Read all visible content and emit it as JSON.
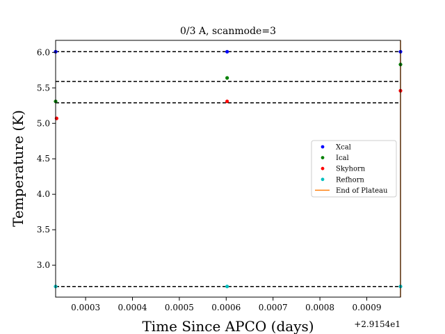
{
  "chart_data": {
    "type": "scatter",
    "title": "0/3 A, scanmode=3",
    "xlabel": "Time Since APCO (days)",
    "ylabel": "Temperature (K)",
    "x_offset_label": "+2.9154e1",
    "xlim": [
      0.000236,
      0.000972
    ],
    "ylim": [
      2.55,
      6.17
    ],
    "x_ticks": [
      {
        "value": 0.0003,
        "label": "0.0003"
      },
      {
        "value": 0.0004,
        "label": "0.0004"
      },
      {
        "value": 0.0005,
        "label": "0.0005"
      },
      {
        "value": 0.0006,
        "label": "0.0006"
      },
      {
        "value": 0.0007,
        "label": "0.0007"
      },
      {
        "value": 0.0008,
        "label": "0.0008"
      },
      {
        "value": 0.0009,
        "label": "0.0009"
      }
    ],
    "y_ticks": [
      {
        "value": 3.0,
        "label": "3.0"
      },
      {
        "value": 3.5,
        "label": "3.5"
      },
      {
        "value": 4.0,
        "label": "4.0"
      },
      {
        "value": 4.5,
        "label": "4.5"
      },
      {
        "value": 5.0,
        "label": "5.0"
      },
      {
        "value": 5.5,
        "label": "5.5"
      },
      {
        "value": 6.0,
        "label": "6.0"
      }
    ],
    "reference_lines": [
      6.01,
      5.59,
      5.29,
      2.7
    ],
    "series": [
      {
        "name": "Xcal",
        "color": "#0000ff",
        "points": [
          [
            0.000236,
            6.01
          ],
          [
            0.000602,
            6.01
          ],
          [
            0.000972,
            6.01
          ]
        ]
      },
      {
        "name": "Ical",
        "color": "#008000",
        "points": [
          [
            0.000236,
            5.31
          ],
          [
            0.000602,
            5.64
          ],
          [
            0.000972,
            5.83
          ]
        ]
      },
      {
        "name": "Skyhorn",
        "color": "#ff0000",
        "points": [
          [
            0.000238,
            5.07
          ],
          [
            0.000602,
            5.31
          ],
          [
            0.000972,
            5.46
          ]
        ]
      },
      {
        "name": "Refhorn",
        "color": "#00bfbf",
        "points": [
          [
            0.000236,
            2.7
          ],
          [
            0.000602,
            2.7
          ],
          [
            0.000972,
            2.7
          ]
        ]
      }
    ],
    "end_of_plateau": {
      "name": "End of Plateau",
      "color": "#ff7f0e",
      "x": 0.000972
    },
    "legend_position": "center-right",
    "grid": false
  }
}
